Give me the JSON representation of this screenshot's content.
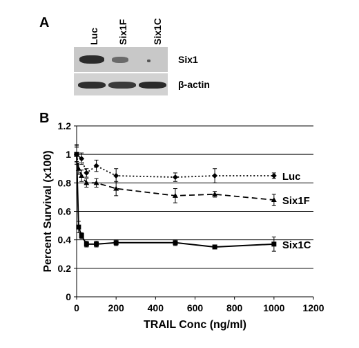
{
  "panel_a": {
    "letter": "A",
    "lanes": [
      "Luc",
      "Six1F",
      "Six1C"
    ],
    "rows": [
      "Six1",
      "β-actin"
    ]
  },
  "panel_b": {
    "letter": "B"
  },
  "chart_data": {
    "type": "line",
    "xlabel": "TRAIL Conc (ng/ml)",
    "ylabel": "Percent Survival (x100)",
    "xlim": [
      0,
      1200
    ],
    "ylim": [
      0,
      1.2
    ],
    "xticks": [
      0,
      200,
      400,
      600,
      800,
      1000,
      1200
    ],
    "yticks": [
      0,
      0.2,
      0.4,
      0.6,
      0.8,
      1,
      1.2
    ],
    "ytick_labels": [
      "0",
      "0.2",
      "0.4",
      "0.6",
      "0.8",
      "1",
      "1.2"
    ],
    "grid": "horizontal",
    "series": [
      {
        "name": "Luc",
        "style": "dotted",
        "marker": "diamond",
        "x": [
          0,
          25,
          50,
          100,
          200,
          500,
          700,
          1000
        ],
        "y": [
          1.0,
          0.97,
          0.87,
          0.92,
          0.85,
          0.84,
          0.85,
          0.85
        ],
        "err": [
          0.07,
          0.04,
          0.03,
          0.04,
          0.05,
          0.03,
          0.05,
          0.02
        ]
      },
      {
        "name": "Six1F",
        "style": "dashed",
        "marker": "triangle",
        "x": [
          0,
          10,
          25,
          50,
          100,
          200,
          500,
          700,
          1000
        ],
        "y": [
          1.0,
          0.9,
          0.85,
          0.8,
          0.8,
          0.76,
          0.71,
          0.72,
          0.68
        ],
        "err": [
          0.06,
          0.04,
          0.04,
          0.03,
          0.03,
          0.05,
          0.05,
          0.02,
          0.04
        ]
      },
      {
        "name": "Six1C",
        "style": "solid",
        "marker": "square",
        "x": [
          0,
          10,
          25,
          50,
          100,
          200,
          500,
          700,
          1000
        ],
        "y": [
          1.0,
          0.49,
          0.43,
          0.37,
          0.37,
          0.38,
          0.38,
          0.35,
          0.37
        ],
        "err": [
          0.05,
          0.04,
          0.02,
          0.02,
          0.02,
          0.02,
          0.02,
          0.01,
          0.05
        ]
      }
    ]
  }
}
